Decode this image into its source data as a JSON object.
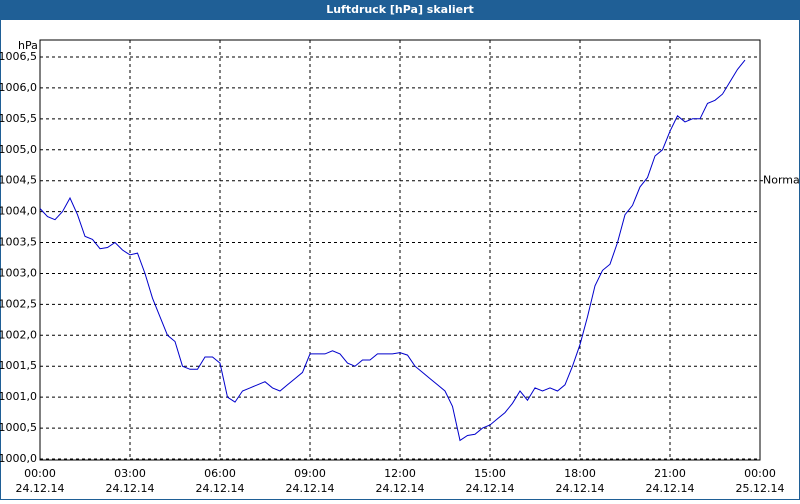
{
  "chart_data": {
    "type": "line",
    "title": "Luftdruck [hPa] skaliert",
    "y_label": "hPa",
    "x": [
      0,
      0.25,
      0.5,
      0.75,
      1,
      1.25,
      1.5,
      1.75,
      2,
      2.25,
      2.5,
      2.75,
      3,
      3.25,
      3.5,
      3.75,
      4,
      4.25,
      4.5,
      4.75,
      5,
      5.25,
      5.5,
      5.75,
      6,
      6.25,
      6.5,
      6.75,
      7,
      7.25,
      7.5,
      7.75,
      8,
      8.25,
      8.5,
      8.75,
      9,
      9.25,
      9.5,
      9.75,
      10,
      10.25,
      10.5,
      10.75,
      11,
      11.25,
      11.5,
      11.75,
      12,
      12.25,
      12.5,
      12.75,
      13,
      13.25,
      13.5,
      13.75,
      14,
      14.25,
      14.5,
      14.75,
      15,
      15.25,
      15.5,
      15.75,
      16,
      16.25,
      16.5,
      16.75,
      17,
      17.25,
      17.5,
      17.75,
      18,
      18.25,
      18.5,
      18.75,
      19,
      19.25,
      19.5,
      19.75,
      20,
      20.25,
      20.5,
      20.75,
      21,
      21.25,
      21.5,
      21.75,
      22,
      22.25,
      22.5,
      22.75,
      23,
      23.25,
      23.5
    ],
    "series": [
      {
        "name": "Luftdruck",
        "color": "#0000cc",
        "values": [
          1004.05,
          1003.92,
          1003.87,
          1004.0,
          1004.22,
          1003.95,
          1003.6,
          1003.55,
          1003.4,
          1003.42,
          1003.5,
          1003.38,
          1003.3,
          1003.33,
          1003.0,
          1002.6,
          1002.3,
          1002.0,
          1001.9,
          1001.5,
          1001.45,
          1001.45,
          1001.65,
          1001.65,
          1001.55,
          1001.0,
          1000.92,
          1001.1,
          1001.15,
          1001.2,
          1001.25,
          1001.15,
          1001.1,
          1001.2,
          1001.3,
          1001.4,
          1001.7,
          1001.7,
          1001.7,
          1001.75,
          1001.7,
          1001.55,
          1001.5,
          1001.6,
          1001.6,
          1001.7,
          1001.7,
          1001.7,
          1001.72,
          1001.68,
          1001.5,
          1001.4,
          1001.3,
          1001.2,
          1001.1,
          1000.85,
          1000.3,
          1000.38,
          1000.4,
          1000.5,
          1000.55,
          1000.65,
          1000.75,
          1000.9,
          1001.1,
          1000.95,
          1001.15,
          1001.1,
          1001.15,
          1001.1,
          1001.2,
          1001.5,
          1001.85,
          1002.3,
          1002.8,
          1003.05,
          1003.15,
          1003.5,
          1003.95,
          1004.1,
          1004.4,
          1004.55,
          1004.9,
          1005.0,
          1005.3,
          1005.55,
          1005.45,
          1005.5,
          1005.5,
          1005.75,
          1005.8,
          1005.9,
          1006.1,
          1006.3,
          1006.45
        ]
      }
    ],
    "xlim": [
      0,
      24
    ],
    "xticks": [
      {
        "value": 0,
        "label": "00:00",
        "date": "24.12.14"
      },
      {
        "value": 3,
        "label": "03:00",
        "date": "24.12.14"
      },
      {
        "value": 6,
        "label": "06:00",
        "date": "24.12.14"
      },
      {
        "value": 9,
        "label": "09:00",
        "date": "24.12.14"
      },
      {
        "value": 12,
        "label": "12:00",
        "date": "24.12.14"
      },
      {
        "value": 15,
        "label": "15:00",
        "date": "24.12.14"
      },
      {
        "value": 18,
        "label": "18:00",
        "date": "24.12.14"
      },
      {
        "value": 21,
        "label": "21:00",
        "date": "24.12.14"
      },
      {
        "value": 24,
        "label": "00:00",
        "date": "25.12.14"
      }
    ],
    "ylim": [
      1000,
      1006.5
    ],
    "yticks": [
      {
        "value": 1000,
        "label": "1000,0"
      },
      {
        "value": 1000.5,
        "label": "1000,5"
      },
      {
        "value": 1001,
        "label": "1001,0"
      },
      {
        "value": 1001.5,
        "label": "1001,5"
      },
      {
        "value": 1002,
        "label": "1002,0"
      },
      {
        "value": 1002.5,
        "label": "1002,5"
      },
      {
        "value": 1003,
        "label": "1003,0"
      },
      {
        "value": 1003.5,
        "label": "1003,5"
      },
      {
        "value": 1004,
        "label": "1004,0"
      },
      {
        "value": 1004.5,
        "label": "1004,5"
      },
      {
        "value": 1005,
        "label": "1005,0"
      },
      {
        "value": 1005.5,
        "label": "1005,5"
      },
      {
        "value": 1006,
        "label": "1006,0"
      },
      {
        "value": 1006.5,
        "label": "1006,5"
      }
    ],
    "reference": {
      "value": 1004.5,
      "label": "Normal"
    },
    "grid": true
  }
}
